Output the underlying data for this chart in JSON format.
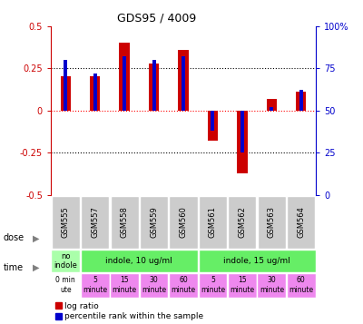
{
  "title": "GDS95 / 4009",
  "samples": [
    "GSM555",
    "GSM557",
    "GSM558",
    "GSM559",
    "GSM560",
    "GSM561",
    "GSM562",
    "GSM563",
    "GSM564"
  ],
  "log_ratios": [
    0.2,
    0.2,
    0.4,
    0.28,
    0.36,
    -0.18,
    -0.37,
    0.07,
    0.11
  ],
  "percentile_ranks": [
    80,
    72,
    82,
    80,
    82,
    38,
    25,
    52,
    62
  ],
  "ylim_left": [
    -0.5,
    0.5
  ],
  "ylim_right": [
    0,
    100
  ],
  "left_ticks": [
    -0.5,
    -0.25,
    0,
    0.25,
    0.5
  ],
  "right_ticks": [
    0,
    25,
    50,
    75,
    100
  ],
  "bar_color_red": "#cc0000",
  "bar_color_blue": "#0000cc",
  "left_axis_color": "#cc0000",
  "right_axis_color": "#0000cc",
  "dose_cells": [
    "no\nindole",
    "indole, 10 ug/ml",
    "indole, 15 ug/ml"
  ],
  "dose_spans": [
    1,
    4,
    4
  ],
  "dose_colors": [
    "#aaffaa",
    "#66ee66",
    "#66ee66"
  ],
  "time_labels": [
    "0 min\nute",
    "5\nminute",
    "15\nminute",
    "30\nminute",
    "60\nminute",
    "5\nminute",
    "15\nminute",
    "30\nminute",
    "60\nminute"
  ],
  "time_colors": [
    "#ffffff",
    "#ee88ee",
    "#ee88ee",
    "#ee88ee",
    "#ee88ee",
    "#ee88ee",
    "#ee88ee",
    "#ee88ee",
    "#ee88ee"
  ],
  "sample_bg": "#cccccc",
  "dose_label": "dose",
  "time_label": "time",
  "legend_red_label": "log ratio",
  "legend_blue_label": "percentile rank within the sample"
}
